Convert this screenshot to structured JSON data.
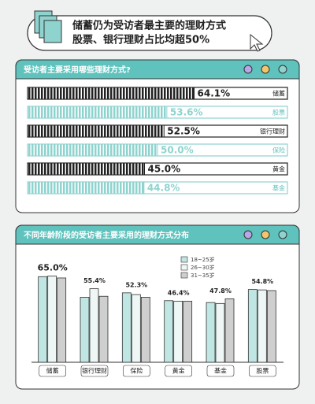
{
  "header": {
    "title_lines": [
      "储蓄仍为受访者最主要的理财方式",
      "股票、银行理财占比均超50%"
    ]
  },
  "chart_data": [
    {
      "type": "hbar",
      "title": "受访者主要采用哪些理财方式?",
      "categories": [
        "储蓄",
        "股票",
        "银行理财",
        "保险",
        "黄金",
        "基金"
      ],
      "values": [
        64.1,
        53.6,
        52.5,
        50.0,
        45.0,
        44.8
      ],
      "value_labels": [
        "64.1%",
        "53.6%",
        "52.5%",
        "50.0%",
        "45.0%",
        "44.8%"
      ],
      "colors": [
        "#222222",
        "#8fd3cf"
      ],
      "xlim": [
        0,
        100
      ]
    },
    {
      "type": "grouped-bar",
      "title": "不同年龄阶段的受访者主要采用的理财方式分布",
      "categories": [
        "储蓄",
        "银行理财",
        "保险",
        "黄金",
        "基金",
        "股票"
      ],
      "series": [
        {
          "name": "18~25岁",
          "color": "#bfe6e3",
          "values": [
            64.5,
            49.0,
            52.3,
            46.4,
            45.0,
            54.8
          ]
        },
        {
          "name": "26~30岁",
          "color": "#eef7f6",
          "values": [
            65.0,
            55.4,
            51.0,
            46.0,
            44.3,
            54.5
          ]
        },
        {
          "name": "31~35岁",
          "color": "#cfcfcf",
          "values": [
            63.5,
            49.7,
            49.0,
            46.0,
            47.8,
            54.0
          ]
        }
      ],
      "value_labels": [
        "65.0%",
        "55.4%",
        "52.3%",
        "46.4%",
        "47.8%",
        "54.8%"
      ],
      "label_series": [
        1,
        1,
        0,
        0,
        2,
        0
      ],
      "legend": "top-right",
      "ylim": [
        0,
        70
      ]
    }
  ]
}
